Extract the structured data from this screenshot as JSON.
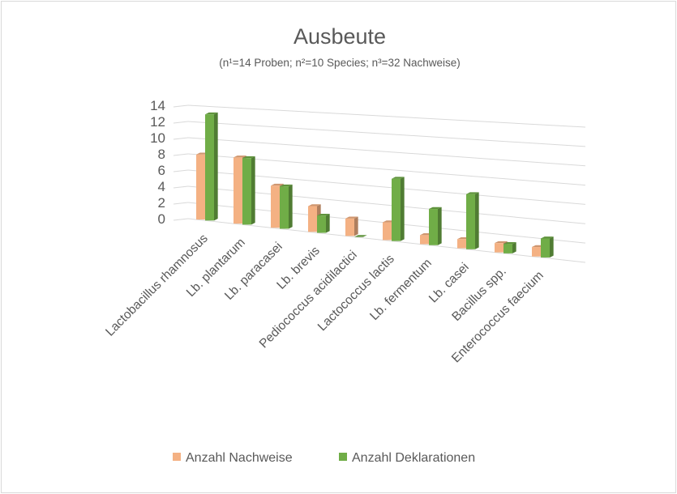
{
  "chart_data": {
    "type": "bar",
    "title": "Ausbeute",
    "subtitle": "(n¹=14 Proben; n²=10 Species; n³=32 Nachweise)",
    "categories": [
      "Lactobacillus rhamnosus",
      "Lb. plantarum",
      "Lb. paracasei",
      "Lb. brevis",
      "Pediococcus acidilactici",
      "Lactococcus lactis",
      "Lb. fermentum",
      "Lb. casei",
      "Bacillus spp.",
      "Enterococcus faecium"
    ],
    "series": [
      {
        "name": "Anzahl Nachweise",
        "values": [
          8,
          8,
          5,
          3,
          2,
          2,
          1,
          1,
          1,
          1
        ],
        "color": "#f4b183"
      },
      {
        "name": "Anzahl Deklarationen",
        "values": [
          13,
          8,
          5,
          2,
          0,
          7,
          4,
          6,
          1,
          2
        ],
        "color": "#70ad47"
      }
    ],
    "yticks": [
      0,
      2,
      4,
      6,
      8,
      10,
      12,
      14
    ],
    "ylim": [
      0,
      14
    ],
    "grid": true,
    "legend": "bottom",
    "style": "3d-clustered-column"
  }
}
